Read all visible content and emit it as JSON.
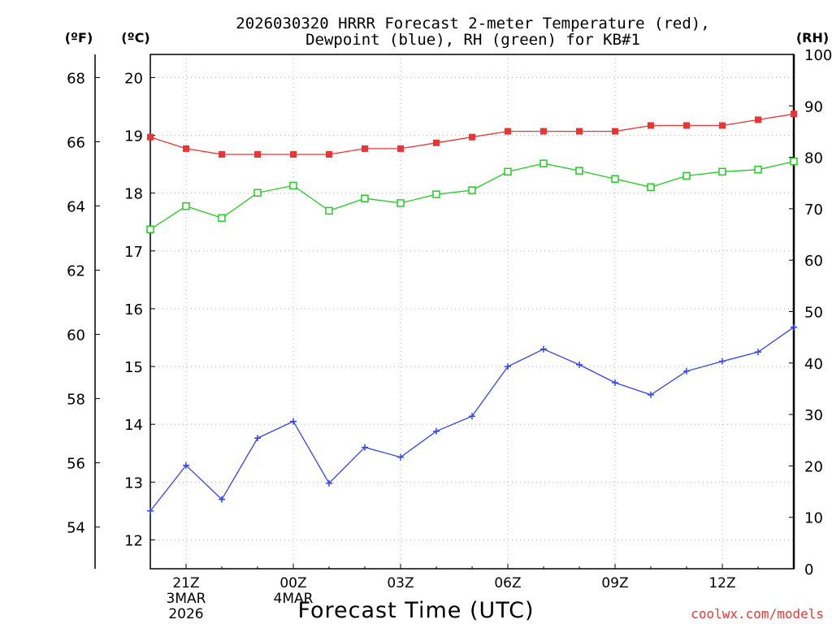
{
  "chart_data": {
    "type": "line",
    "title_line1": "2026030320 HRRR Forecast 2-meter Temperature (red),",
    "title_line2": "Dewpoint (blue), RH (green) for KB#1",
    "xlabel": "Forecast Time (UTC)",
    "credit": "coolwx.com/models",
    "unit_f": "(ºF)",
    "unit_c": "(ºC)",
    "unit_rh": "(RH)",
    "x_hours": [
      20,
      21,
      22,
      23,
      24,
      25,
      26,
      27,
      28,
      29,
      30,
      31,
      32,
      33,
      34,
      35,
      36,
      37,
      38
    ],
    "xlim": [
      20,
      38
    ],
    "x_ticks": [
      {
        "hour": 21,
        "label": "21Z",
        "date1": "3MAR",
        "date2": "2026"
      },
      {
        "hour": 24,
        "label": "00Z",
        "date1": "4MAR",
        "date2": ""
      },
      {
        "hour": 27,
        "label": "03Z",
        "date1": "",
        "date2": ""
      },
      {
        "hour": 30,
        "label": "06Z",
        "date1": "",
        "date2": ""
      },
      {
        "hour": 33,
        "label": "09Z",
        "date1": "",
        "date2": ""
      },
      {
        "hour": 36,
        "label": "12Z",
        "date1": "",
        "date2": ""
      }
    ],
    "celsius_axis": {
      "range": [
        11.5,
        20.4
      ],
      "ticks": [
        12,
        13,
        14,
        15,
        16,
        17,
        18,
        19,
        20
      ]
    },
    "fahrenheit_axis": {
      "ticks": [
        54,
        56,
        58,
        60,
        62,
        64,
        66,
        68
      ]
    },
    "rh_axis": {
      "range": [
        0,
        100
      ],
      "ticks": [
        0,
        10,
        20,
        30,
        40,
        50,
        60,
        70,
        80,
        90,
        100
      ]
    },
    "series": [
      {
        "name": "Temperature",
        "unit": "C",
        "color": "#ee3333",
        "marker": "filled-square",
        "values": [
          18.97,
          18.77,
          18.67,
          18.67,
          18.67,
          18.67,
          18.77,
          18.77,
          18.87,
          18.97,
          19.07,
          19.07,
          19.07,
          19.07,
          19.17,
          19.17,
          19.17,
          19.27,
          19.37
        ]
      },
      {
        "name": "Dewpoint",
        "unit": "C",
        "color": "#3344ee",
        "marker": "plus",
        "values": [
          12.5,
          13.29,
          12.7,
          13.76,
          14.05,
          12.98,
          13.6,
          13.43,
          13.88,
          14.14,
          15.0,
          15.3,
          15.03,
          14.72,
          14.51,
          14.92,
          15.09,
          15.25,
          15.68
        ]
      },
      {
        "name": "RH",
        "unit": "%",
        "color": "#22cc22",
        "marker": "open-square",
        "values": [
          66,
          70.5,
          68.2,
          73.1,
          74.5,
          69.6,
          72,
          71.1,
          72.8,
          73.6,
          77.2,
          78.8,
          77.4,
          75.8,
          74.2,
          76.4,
          77.2,
          77.6,
          79.2
        ]
      }
    ]
  }
}
